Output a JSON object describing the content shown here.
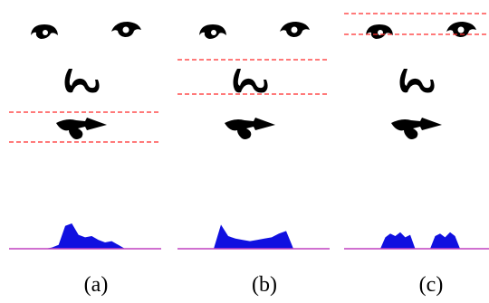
{
  "figure": {
    "panels": [
      {
        "caption": "(a)",
        "band": "mouth",
        "profile": [
          0,
          0.05,
          0.15,
          0.9,
          1.0,
          0.55,
          0.45,
          0.5,
          0.35,
          0.25,
          0.3,
          0.15,
          0
        ]
      },
      {
        "caption": "(b)",
        "band": "nose",
        "profile": [
          0,
          0.95,
          0.5,
          0.4,
          0.35,
          0.3,
          0.35,
          0.4,
          0.45,
          0.6,
          0.7,
          0
        ]
      },
      {
        "caption": "(c)",
        "band": "eyes",
        "profile": [
          0,
          0.45,
          0.6,
          0.5,
          0.65,
          0.45,
          0.55,
          0,
          0,
          0,
          0,
          0.5,
          0.6,
          0.45,
          0.65,
          0.5,
          0
        ]
      }
    ],
    "colors": {
      "band_line": "#ff2a2a",
      "profile_fill": "#1010e0",
      "baseline": "#c040c0",
      "ink": "#000000"
    }
  }
}
